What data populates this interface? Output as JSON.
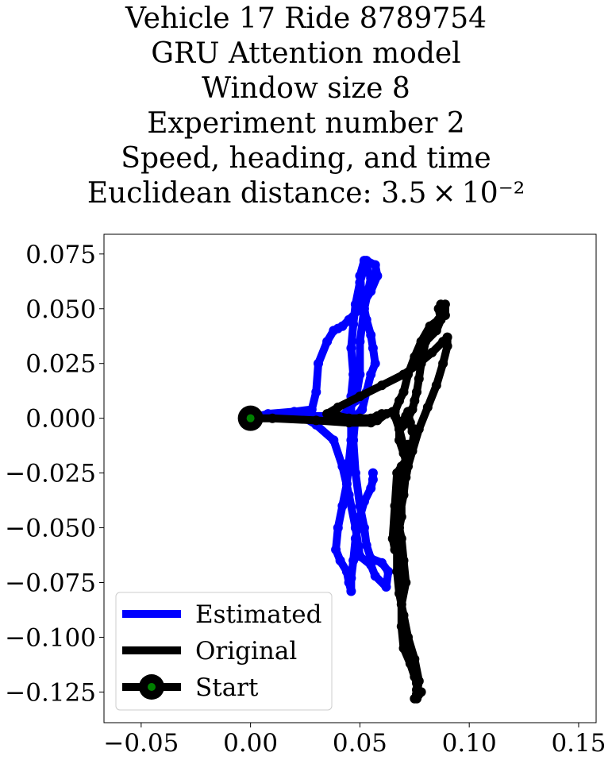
{
  "chart_data": {
    "type": "line",
    "title_lines": [
      "Vehicle 17 Ride 8789754",
      "GRU Attention model",
      "Window size 8",
      "Experiment number 2",
      "Speed, heading, and time",
      "Euclidean distance: 3.5 × 10⁻²"
    ],
    "xlabel": "",
    "ylabel": "",
    "xlim": [
      -0.067,
      0.158
    ],
    "ylim": [
      -0.139,
      0.084
    ],
    "x_ticks": [
      -0.05,
      0.0,
      0.05,
      0.1,
      0.15
    ],
    "x_tick_labels": [
      "−0.05",
      "0.00",
      "0.05",
      "0.10",
      "0.15"
    ],
    "y_ticks": [
      0.075,
      0.05,
      0.025,
      0.0,
      -0.025,
      -0.05,
      -0.075,
      -0.1,
      -0.125
    ],
    "y_tick_labels": [
      "0.075",
      "0.050",
      "0.025",
      "0.000",
      "−0.025",
      "−0.050",
      "−0.075",
      "−0.100",
      "−0.125"
    ],
    "grid": false,
    "legend_position": "lower-left",
    "series": [
      {
        "name": "Estimated",
        "color": "#0000ff",
        "x": [
          0.0,
          0.02,
          0.035,
          0.042,
          0.048,
          0.05,
          0.05,
          0.052,
          0.055,
          0.052,
          0.05,
          0.051,
          0.053,
          0.055,
          0.056,
          0.057,
          0.055,
          0.053,
          0.051,
          0.048,
          0.047,
          0.048,
          0.05,
          0.052,
          0.053,
          0.055,
          0.06,
          0.063,
          0.062,
          0.057,
          0.055,
          0.05,
          0.048,
          0.045,
          0.042,
          0.038,
          0.03,
          0.025,
          0.01,
          0.0,
          -0.0,
          0.008,
          0.02,
          0.028,
          0.03,
          0.031,
          0.035,
          0.038,
          0.04,
          0.042,
          0.045,
          0.05,
          0.055,
          0.058,
          0.057,
          0.053,
          0.05,
          0.048,
          0.047,
          0.046,
          0.047,
          0.046,
          0.046,
          0.046,
          0.045,
          0.044,
          0.042,
          0.04,
          0.039,
          0.041,
          0.044,
          0.045,
          0.046,
          0.046,
          0.047,
          0.048,
          0.05,
          0.052,
          0.055,
          0.056,
          0.056
        ],
        "y": [
          0.001,
          0.001,
          0.001,
          0.001,
          0.008,
          0.02,
          0.035,
          0.05,
          0.064,
          0.072,
          0.065,
          0.055,
          0.045,
          0.038,
          0.032,
          0.025,
          0.02,
          0.012,
          0.004,
          0.001,
          -0.01,
          -0.025,
          -0.04,
          -0.05,
          -0.058,
          -0.064,
          -0.066,
          -0.07,
          -0.077,
          -0.072,
          -0.067,
          -0.063,
          -0.05,
          -0.035,
          -0.022,
          -0.01,
          -0.003,
          -0.0,
          0.001,
          0.0,
          0.0,
          0.002,
          0.003,
          0.004,
          0.012,
          0.025,
          0.035,
          0.04,
          0.041,
          0.042,
          0.045,
          0.05,
          0.058,
          0.065,
          0.07,
          0.072,
          0.062,
          0.052,
          0.043,
          0.032,
          0.02,
          0.01,
          0.0,
          -0.01,
          -0.02,
          -0.03,
          -0.04,
          -0.05,
          -0.06,
          -0.065,
          -0.07,
          -0.075,
          -0.079,
          -0.073,
          -0.065,
          -0.055,
          -0.045,
          -0.038,
          -0.032,
          -0.028,
          -0.025
        ]
      },
      {
        "name": "Original",
        "color": "#000000",
        "x": [
          0.0,
          0.01,
          0.03,
          0.045,
          0.055,
          0.058,
          0.062,
          0.065,
          0.066,
          0.068,
          0.068,
          0.07,
          0.072,
          0.071,
          0.068,
          0.067,
          0.069,
          0.07,
          0.071,
          0.069,
          0.069,
          0.07,
          0.073,
          0.075,
          0.076,
          0.076,
          0.077,
          0.078,
          0.076,
          0.075,
          0.076,
          0.077,
          0.075,
          0.072,
          0.07,
          0.068,
          0.067,
          0.067,
          0.068,
          0.069,
          0.069,
          0.07,
          0.071,
          0.072,
          0.072,
          0.07,
          0.068,
          0.066,
          0.068,
          0.07,
          0.072,
          0.075,
          0.078,
          0.082,
          0.086,
          0.089,
          0.089,
          0.087,
          0.086,
          0.087,
          0.085,
          0.08,
          0.078,
          0.077,
          0.076,
          0.075,
          0.074,
          0.072,
          0.07,
          0.069,
          0.068,
          0.069,
          0.07,
          0.071,
          0.072,
          0.073,
          0.074,
          0.075,
          0.074,
          0.072,
          0.069,
          0.067,
          0.066,
          0.065,
          0.066,
          0.067,
          0.068,
          0.07,
          0.071,
          0.074,
          0.077,
          0.081,
          0.085,
          0.088,
          0.09,
          0.09,
          0.088,
          0.083,
          0.077,
          0.07,
          0.06,
          0.05,
          0.04,
          0.035,
          0.04,
          0.045,
          0.05,
          0.055,
          0.058,
          0.06
        ],
        "y": [
          0.0,
          0.0,
          -0.001,
          -0.002,
          -0.002,
          -0.001,
          0.002,
          0.003,
          0.001,
          -0.005,
          -0.01,
          -0.016,
          -0.022,
          -0.027,
          -0.035,
          -0.045,
          -0.055,
          -0.065,
          -0.075,
          -0.085,
          -0.095,
          -0.105,
          -0.112,
          -0.118,
          -0.121,
          -0.124,
          -0.125,
          -0.125,
          -0.128,
          -0.128,
          -0.126,
          -0.12,
          -0.11,
          -0.1,
          -0.09,
          -0.08,
          -0.07,
          -0.06,
          -0.05,
          -0.045,
          -0.03,
          -0.022,
          -0.018,
          -0.014,
          -0.012,
          -0.013,
          -0.005,
          0.003,
          0.008,
          0.012,
          0.02,
          0.028,
          0.035,
          0.042,
          0.045,
          0.047,
          0.052,
          0.052,
          0.05,
          0.045,
          0.04,
          0.035,
          0.025,
          0.018,
          0.012,
          0.008,
          0.004,
          0.0,
          -0.003,
          -0.004,
          -0.004,
          -0.003,
          -0.001,
          0.001,
          0.003,
          -0.002,
          -0.006,
          -0.005,
          -0.012,
          -0.018,
          -0.022,
          -0.025,
          -0.04,
          -0.055,
          -0.06,
          -0.053,
          -0.045,
          -0.035,
          -0.025,
          -0.015,
          -0.005,
          0.005,
          0.015,
          0.025,
          0.033,
          0.037,
          0.035,
          0.03,
          0.025,
          0.02,
          0.015,
          0.01,
          0.005,
          0.002,
          0.001,
          0.0,
          0.0,
          0.0,
          0.001,
          0.002
        ]
      },
      {
        "name": "Start",
        "color": "#000000",
        "marker_color": "#008000",
        "x": [
          0.0
        ],
        "y": [
          0.0
        ]
      }
    ]
  }
}
